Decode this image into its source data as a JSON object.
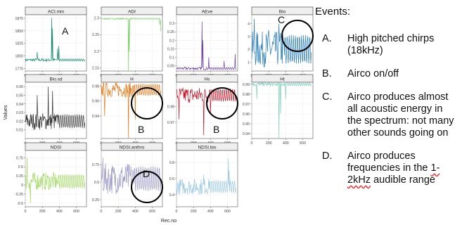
{
  "chart_data": {
    "type": "line",
    "ylabel": "Values",
    "xlabel": "Rec.no",
    "x_ticks": [
      0,
      200,
      400,
      600
    ],
    "xlim": [
      0,
      720
    ],
    "panels": [
      {
        "title": "ACI.min",
        "color": "#1a8a6e",
        "ylim": [
          1770,
          1882
        ],
        "yticks": [
          1775,
          1800,
          1825,
          1850,
          1875
        ],
        "base": 1792,
        "amp": 3,
        "spikes": [
          [
            310,
            1876
          ],
          [
            320,
            1855
          ],
          [
            395,
            1820
          ],
          [
            380,
            1815
          ],
          [
            140,
            1808
          ]
        ],
        "annotation": "A"
      },
      {
        "title": "ADI",
        "color": "#7ccf6a",
        "ylim": [
          2.14,
          2.31
        ],
        "yticks": [
          2.15,
          2.2,
          2.25,
          2.3
        ],
        "base": 2.298,
        "amp": 0.002,
        "spikes": [
          [
            320,
            2.14
          ],
          [
            330,
            2.2
          ],
          [
            690,
            2.28
          ],
          [
            700,
            2.26
          ]
        ]
      },
      {
        "title": "AEve",
        "color": "#6b3fa0",
        "ylim": [
          0.02,
          0.35
        ],
        "yticks": [
          0.05,
          0.1,
          0.15,
          0.2,
          0.25,
          0.3
        ],
        "base": 0.035,
        "amp": 0.008,
        "spikes": [
          [
            300,
            0.31
          ],
          [
            310,
            0.2
          ],
          [
            380,
            0.1
          ],
          [
            560,
            0.08
          ],
          [
            690,
            0.12
          ]
        ]
      },
      {
        "title": "Bio",
        "color": "#2c7fb8",
        "ylim": [
          0.3,
          4.7
        ],
        "yticks": [
          1,
          2,
          3,
          4
        ],
        "base": 2.0,
        "amp": 1.4,
        "spikes": [
          [
            30,
            4.4
          ],
          [
            200,
            3.5
          ],
          [
            320,
            4.0
          ]
        ],
        "annotation": "C"
      },
      {
        "title": "Bio.sd",
        "color": "#333333",
        "ylim": [
          0.0,
          0.065
        ],
        "yticks": [
          0.01,
          0.02,
          0.03,
          0.04,
          0.05,
          0.06
        ],
        "base": 0.02,
        "amp": 0.01,
        "spikes": [
          [
            140,
            0.05
          ],
          [
            270,
            0.06
          ],
          [
            320,
            0.055
          ]
        ]
      },
      {
        "title": "H",
        "color": "#e07b1f",
        "ylim": [
          0.91,
          0.985
        ],
        "yticks": [
          0.94,
          0.96,
          0.98
        ],
        "base": 0.975,
        "amp": 0.01,
        "spikes": [
          [
            40,
            0.94
          ],
          [
            320,
            0.91
          ],
          [
            400,
            0.935
          ]
        ],
        "annotation": "B"
      },
      {
        "title": "Hs",
        "color": "#c0192b",
        "ylim": [
          0.96,
          0.995
        ],
        "yticks": [
          0.97,
          0.98
        ],
        "base": 0.987,
        "amp": 0.005,
        "spikes": [
          [
            30,
            0.972
          ],
          [
            320,
            0.962
          ],
          [
            400,
            0.975
          ]
        ],
        "annotation": "B"
      },
      {
        "title": "Ht",
        "color": "#7fcdbb",
        "ylim": [
          0.935,
          0.992
        ],
        "yticks": [
          0.94,
          0.95,
          0.96,
          0.97,
          0.98,
          0.99
        ],
        "base": 0.99,
        "amp": 0.002,
        "spikes": [
          [
            60,
            0.975
          ],
          [
            320,
            0.935
          ],
          [
            340,
            0.96
          ],
          [
            400,
            0.975
          ]
        ]
      },
      {
        "title": "NDSI",
        "color": "#a6d96a",
        "ylim": [
          -0.6,
          0.95
        ],
        "yticks": [
          -0.5,
          -0.25,
          0.0,
          0.25,
          0.5,
          0.75
        ],
        "base": 0.1,
        "amp": 0.25,
        "spikes": [
          [
            20,
            0.75
          ],
          [
            60,
            -0.5
          ]
        ]
      },
      {
        "title": "NDSI.anthro",
        "color": "#9e9ac8",
        "ylim": [
          0.15,
          0.95
        ],
        "yticks": [
          0.25,
          0.5,
          0.75
        ],
        "base": 0.55,
        "amp": 0.22,
        "spikes": [
          [
            20,
            0.85
          ]
        ],
        "annotation": "D"
      },
      {
        "title": "NDSI.bio",
        "color": "#9ecae1",
        "ylim": [
          0.25,
          0.95
        ],
        "yticks": [
          0.4,
          0.6,
          0.8
        ],
        "base": 0.5,
        "amp": 0.1,
        "spikes": [
          [
            320,
            0.65
          ],
          [
            610,
            0.85
          ],
          [
            620,
            0.7
          ]
        ]
      }
    ]
  },
  "events": {
    "title": "Events:",
    "items": [
      {
        "letter": "A.",
        "text": "High pitched chirps (18kHz)"
      },
      {
        "letter": "B.",
        "text": "Airco on/off"
      },
      {
        "letter": "C.",
        "text": "Airco produces almost all acoustic energy in the spectrum: not many other sounds going on"
      },
      {
        "letter": "D.",
        "text": "Airco produces frequencies in the",
        "text2": "1-2kHz",
        "text3": " audible range"
      }
    ]
  }
}
